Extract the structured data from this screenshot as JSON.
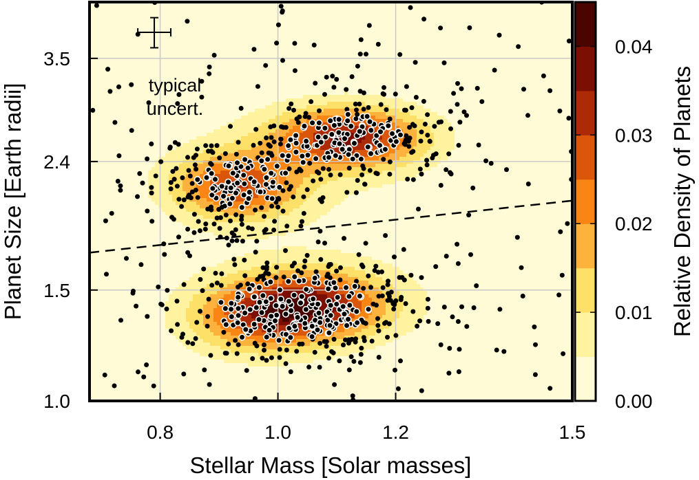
{
  "chart_data": {
    "type": "scatter",
    "subtype": "scatter-with-density-contours",
    "title": "",
    "xlabel": "Stellar Mass [Solar masses]",
    "ylabel": "Planet Size [Earth radii]",
    "xlim": [
      0.68,
      1.5
    ],
    "ylim_log": [
      1.0,
      4.3
    ],
    "x_ticks": [
      0.8,
      1.0,
      1.2,
      1.5
    ],
    "x_tick_labels": [
      "0.8",
      "1.0",
      "1.2",
      "1.5"
    ],
    "y_ticks": [
      1.0,
      1.5,
      2.4,
      3.5
    ],
    "y_tick_labels": [
      "1.0",
      "1.5",
      "2.4",
      "3.5"
    ],
    "grid": true,
    "annotation": {
      "line1": "typical",
      "line2": "uncert."
    },
    "typical_uncertainty": {
      "x": 0.79,
      "y": 3.85,
      "x_err": 0.028,
      "y_err_frac": 0.055
    },
    "dashed_line": {
      "label": "",
      "points": [
        [
          0.68,
          1.72
        ],
        [
          1.5,
          2.08
        ]
      ]
    },
    "colorbar": {
      "label": "Relative Density of Planets",
      "range": [
        0.0,
        0.045
      ],
      "ticks": [
        0.0,
        0.01,
        0.02,
        0.03,
        0.04
      ],
      "tick_labels": [
        "0.00",
        "0.01",
        "0.02",
        "0.03",
        "0.04"
      ],
      "levels": [
        0.0,
        0.005,
        0.01,
        0.015,
        0.02,
        0.025,
        0.03,
        0.035,
        0.04,
        0.045
      ],
      "colors": [
        "#fffbd7",
        "#fff3a0",
        "#fde068",
        "#fdb23e",
        "#f98614",
        "#d9560a",
        "#ad2a06",
        "#7b0f03",
        "#4a0501",
        "#250200"
      ]
    },
    "density_components": [
      {
        "mx": 0.93,
        "my": 2.2,
        "sx": 0.075,
        "sy": 0.085,
        "w": 0.65
      },
      {
        "mx": 1.12,
        "my": 2.62,
        "sx": 0.085,
        "sy": 0.075,
        "w": 0.8
      },
      {
        "mx": 1.06,
        "my": 1.42,
        "sx": 0.09,
        "sy": 0.085,
        "w": 0.75
      },
      {
        "mx": 0.96,
        "my": 1.35,
        "sx": 0.08,
        "sy": 0.09,
        "w": 0.45
      },
      {
        "mx": 1.05,
        "my": 2.4,
        "sx": 0.2,
        "sy": 0.2,
        "w": 0.1
      },
      {
        "mx": 1.05,
        "my": 1.45,
        "sx": 0.2,
        "sy": 0.18,
        "w": 0.08
      }
    ],
    "density_peak": 0.044,
    "cluster_counts": {
      "upper_left": 200,
      "upper_right": 210,
      "lower": 360,
      "background": 175
    },
    "n_points": 945
  }
}
